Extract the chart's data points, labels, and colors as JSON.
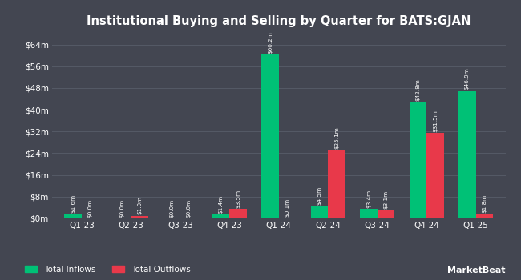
{
  "title": "Institutional Buying and Selling by Quarter for BATS:GJAN",
  "categories": [
    "Q1-23",
    "Q2-23",
    "Q3-23",
    "Q4-23",
    "Q1-24",
    "Q2-24",
    "Q3-24",
    "Q4-24",
    "Q1-25"
  ],
  "inflows": [
    1.6,
    0.0,
    0.0,
    1.4,
    60.2,
    4.5,
    3.4,
    42.8,
    46.9
  ],
  "outflows": [
    0.0,
    1.0,
    0.0,
    3.5,
    0.1,
    25.1,
    3.1,
    31.5,
    1.8
  ],
  "inflow_labels": [
    "$1.6m",
    "$0.0m",
    "$0.0m",
    "$1.4m",
    "$60.2m",
    "$4.5m",
    "$3.4m",
    "$42.8m",
    "$46.9m"
  ],
  "outflow_labels": [
    "$0.0m",
    "$1.0m",
    "$0.0m",
    "$3.5m",
    "$0.1m",
    "$25.1m",
    "$3.1m",
    "$31.5m",
    "$1.8m"
  ],
  "inflow_color": "#00c176",
  "outflow_color": "#e8394a",
  "bg_color": "#434651",
  "text_color": "#ffffff",
  "grid_color": "#555a66",
  "yticks": [
    0,
    8,
    16,
    24,
    32,
    40,
    48,
    56,
    64
  ],
  "ytick_labels": [
    "$0m",
    "$8m",
    "$16m",
    "$24m",
    "$32m",
    "$40m",
    "$48m",
    "$56m",
    "$64m"
  ],
  "ylim": [
    0,
    68
  ],
  "bar_width": 0.35,
  "legend_labels": [
    "Total Inflows",
    "Total Outflows"
  ]
}
